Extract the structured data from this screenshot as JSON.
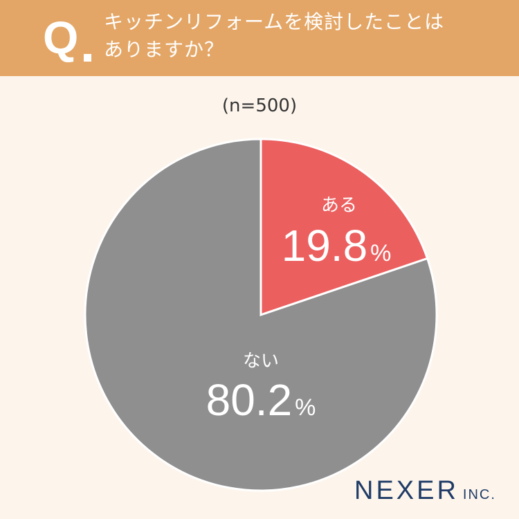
{
  "header": {
    "q_mark": "Q",
    "question_line1": "キッチンリフォームを検討したことは",
    "question_line2": "ありますか？"
  },
  "sample_size": "(n=500)",
  "chart_data": {
    "type": "pie",
    "title": "キッチンリフォームを検討したことはありますか？",
    "categories": [
      "ある",
      "ない"
    ],
    "values": [
      19.8,
      80.2
    ],
    "unit": "%",
    "colors": [
      "#ec5f5f",
      "#8f8f8f"
    ]
  },
  "logo": {
    "name": "NEXER",
    "suffix": "INC."
  }
}
